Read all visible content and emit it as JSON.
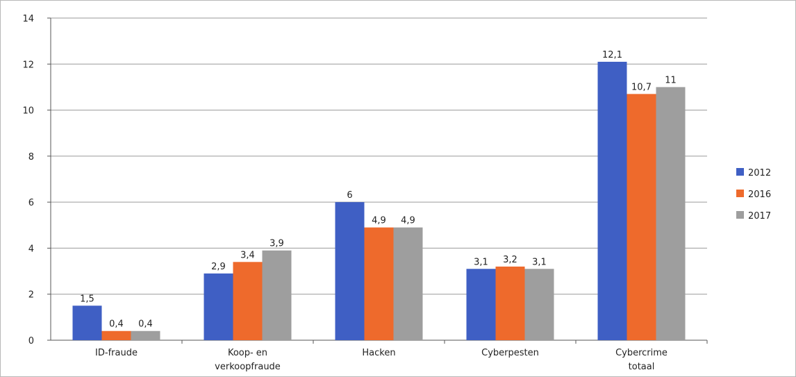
{
  "chart_data": {
    "type": "bar",
    "categories": [
      [
        "ID-fraude"
      ],
      [
        "Koop- en",
        "verkoopfraude"
      ],
      [
        "Hacken"
      ],
      [
        "Cyberpesten"
      ],
      [
        "Cybercrime",
        "totaal"
      ]
    ],
    "series": [
      {
        "name": "2012",
        "values": [
          1.5,
          2.9,
          6,
          3.1,
          12.1
        ],
        "labels": [
          "1,5",
          "2,9",
          "6",
          "3,1",
          "12,1"
        ],
        "color": "#3F5FC4"
      },
      {
        "name": "2016",
        "values": [
          0.4,
          3.4,
          4.9,
          3.2,
          10.7
        ],
        "labels": [
          "0,4",
          "3,4",
          "4,9",
          "3,2",
          "10,7"
        ],
        "color": "#EE6A2C"
      },
      {
        "name": "2017",
        "values": [
          0.4,
          3.9,
          4.9,
          3.1,
          11
        ],
        "labels": [
          "0,4",
          "3,9",
          "4,9",
          "3,1",
          "11"
        ],
        "color": "#9E9E9E"
      }
    ],
    "ylim": [
      0,
      14
    ],
    "yticks": [
      "0",
      "2",
      "4",
      "6",
      "8",
      "10",
      "12",
      "14"
    ],
    "grid": true,
    "legend_position": "right"
  }
}
